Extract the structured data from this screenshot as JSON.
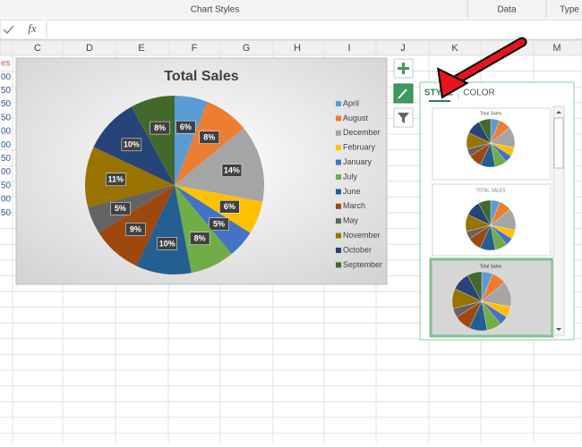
{
  "ui": {
    "ribbon_groups": [
      "Chart Styles",
      "Data",
      "Type"
    ],
    "formula_icon": "fx",
    "columns": [
      "C",
      "D",
      "E",
      "F",
      "G",
      "H",
      "I",
      "J",
      "K",
      "M"
    ],
    "left_cells": [
      "es",
      "00",
      "50",
      "50",
      "50",
      "00",
      "00",
      "50",
      "00",
      "50",
      "00",
      "50"
    ],
    "tabs": [
      "STYLE",
      "COLOR"
    ],
    "thumbnail_titles": [
      "Total Sales",
      "TOTAL SALES",
      "Total Sales"
    ]
  },
  "chart_data": {
    "type": "pie",
    "title": "Total Sales",
    "categories": [
      "April",
      "August",
      "December",
      "February",
      "January",
      "July",
      "June",
      "March",
      "May",
      "November",
      "October",
      "September"
    ],
    "values": [
      6,
      8,
      14,
      6,
      5,
      8,
      10,
      9,
      5,
      11,
      10,
      8
    ],
    "value_labels": [
      "6%",
      "8%",
      "14%",
      "6%",
      "5%",
      "8%",
      "10%",
      "9%",
      "5%",
      "11%",
      "10%",
      "8%"
    ],
    "colors": [
      "#5b9bd5",
      "#ed7d31",
      "#a5a5a5",
      "#ffc000",
      "#4472c4",
      "#70ad47",
      "#255e91",
      "#9e480e",
      "#636363",
      "#997300",
      "#264478",
      "#43682b"
    ],
    "legend": "right"
  }
}
